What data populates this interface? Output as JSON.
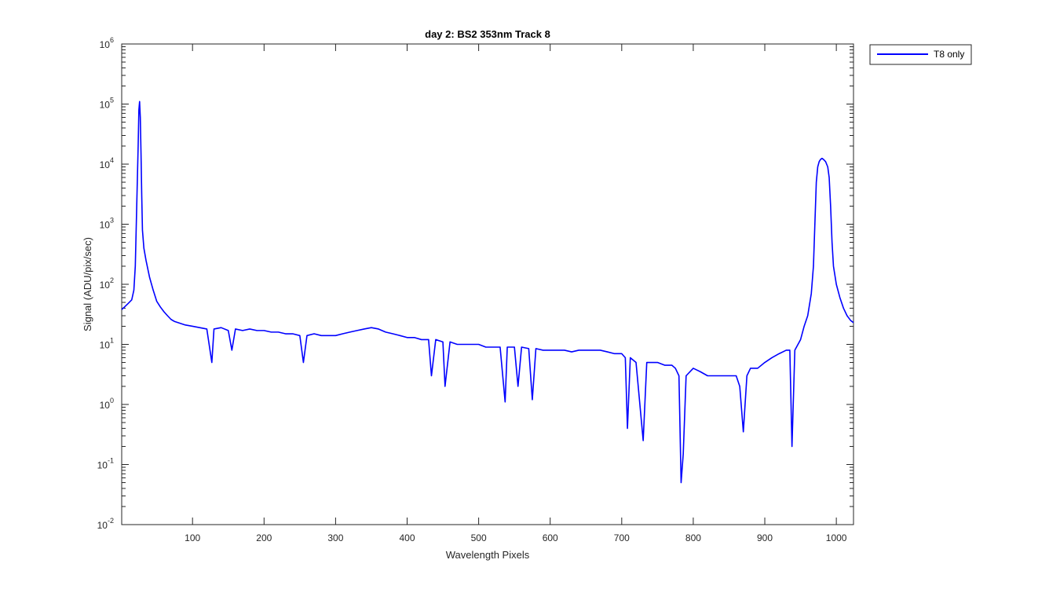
{
  "chart_data": {
    "type": "line",
    "title": "day 2: BS2  353nm  Track 8",
    "xlabel": "Wavelength Pixels",
    "ylabel": "Signal (ADU/pix/sec)",
    "xlim": [
      1,
      1024
    ],
    "ylim": [
      0.01,
      1000000
    ],
    "yscale": "log",
    "grid": false,
    "legend_position": "outside-top-right",
    "x_ticks": [
      100,
      200,
      300,
      400,
      500,
      600,
      700,
      800,
      900,
      1000
    ],
    "x_tick_labels": [
      "100",
      "200",
      "300",
      "400",
      "500",
      "600",
      "700",
      "800",
      "900",
      "1000"
    ],
    "y_ticks": [
      {
        "value": 0.01,
        "base": "10",
        "exp": "-2"
      },
      {
        "value": 0.1,
        "base": "10",
        "exp": "-1"
      },
      {
        "value": 1,
        "base": "10",
        "exp": "0"
      },
      {
        "value": 10,
        "base": "10",
        "exp": "1"
      },
      {
        "value": 100,
        "base": "10",
        "exp": "2"
      },
      {
        "value": 1000,
        "base": "10",
        "exp": "3"
      },
      {
        "value": 10000,
        "base": "10",
        "exp": "4"
      },
      {
        "value": 100000,
        "base": "10",
        "exp": "5"
      },
      {
        "value": 1000000,
        "base": "10",
        "exp": "6"
      }
    ],
    "series": [
      {
        "name": "T8 only",
        "color": "#0000ff",
        "points": [
          [
            1,
            38
          ],
          [
            5,
            42
          ],
          [
            10,
            48
          ],
          [
            15,
            55
          ],
          [
            18,
            80
          ],
          [
            20,
            200
          ],
          [
            22,
            2000
          ],
          [
            24,
            20000
          ],
          [
            25,
            80000
          ],
          [
            26,
            110000
          ],
          [
            27,
            60000
          ],
          [
            28,
            15000
          ],
          [
            29,
            3000
          ],
          [
            30,
            800
          ],
          [
            32,
            400
          ],
          [
            35,
            250
          ],
          [
            40,
            130
          ],
          [
            45,
            80
          ],
          [
            50,
            52
          ],
          [
            55,
            42
          ],
          [
            60,
            35
          ],
          [
            65,
            30
          ],
          [
            70,
            26
          ],
          [
            75,
            24
          ],
          [
            80,
            23
          ],
          [
            90,
            21
          ],
          [
            100,
            20
          ],
          [
            110,
            19
          ],
          [
            120,
            18
          ],
          [
            127,
            5
          ],
          [
            130,
            18
          ],
          [
            140,
            19
          ],
          [
            150,
            17
          ],
          [
            155,
            8
          ],
          [
            160,
            18
          ],
          [
            170,
            17
          ],
          [
            180,
            18
          ],
          [
            190,
            17
          ],
          [
            200,
            17
          ],
          [
            210,
            16
          ],
          [
            220,
            16
          ],
          [
            230,
            15
          ],
          [
            240,
            15
          ],
          [
            250,
            14
          ],
          [
            255,
            5
          ],
          [
            260,
            14
          ],
          [
            270,
            15
          ],
          [
            280,
            14
          ],
          [
            290,
            14
          ],
          [
            300,
            14
          ],
          [
            310,
            15
          ],
          [
            320,
            16
          ],
          [
            330,
            17
          ],
          [
            340,
            18
          ],
          [
            350,
            19
          ],
          [
            360,
            18
          ],
          [
            370,
            16
          ],
          [
            380,
            15
          ],
          [
            390,
            14
          ],
          [
            400,
            13
          ],
          [
            410,
            13
          ],
          [
            420,
            12
          ],
          [
            430,
            12
          ],
          [
            434,
            3
          ],
          [
            440,
            12
          ],
          [
            450,
            11
          ],
          [
            453,
            2
          ],
          [
            460,
            11
          ],
          [
            470,
            10
          ],
          [
            480,
            10
          ],
          [
            490,
            10
          ],
          [
            500,
            10
          ],
          [
            510,
            9
          ],
          [
            520,
            9
          ],
          [
            530,
            9
          ],
          [
            537,
            1.1
          ],
          [
            540,
            9
          ],
          [
            550,
            9
          ],
          [
            555,
            2
          ],
          [
            560,
            9
          ],
          [
            570,
            8.5
          ],
          [
            575,
            1.2
          ],
          [
            580,
            8.5
          ],
          [
            590,
            8
          ],
          [
            600,
            8
          ],
          [
            610,
            8
          ],
          [
            620,
            8
          ],
          [
            630,
            7.5
          ],
          [
            640,
            8
          ],
          [
            650,
            8
          ],
          [
            660,
            8
          ],
          [
            670,
            8
          ],
          [
            680,
            7.5
          ],
          [
            690,
            7
          ],
          [
            700,
            7
          ],
          [
            705,
            6
          ],
          [
            708,
            0.4
          ],
          [
            712,
            6
          ],
          [
            720,
            5
          ],
          [
            730,
            0.25
          ],
          [
            735,
            5
          ],
          [
            740,
            5
          ],
          [
            750,
            5
          ],
          [
            760,
            4.5
          ],
          [
            770,
            4.5
          ],
          [
            775,
            4
          ],
          [
            780,
            3
          ],
          [
            783,
            0.05
          ],
          [
            786,
            0.15
          ],
          [
            790,
            3
          ],
          [
            800,
            4
          ],
          [
            810,
            3.5
          ],
          [
            820,
            3
          ],
          [
            830,
            3
          ],
          [
            840,
            3
          ],
          [
            850,
            3
          ],
          [
            860,
            3
          ],
          [
            865,
            2
          ],
          [
            870,
            0.35
          ],
          [
            875,
            3
          ],
          [
            880,
            4
          ],
          [
            890,
            4
          ],
          [
            900,
            5
          ],
          [
            910,
            6
          ],
          [
            920,
            7
          ],
          [
            930,
            8
          ],
          [
            935,
            8
          ],
          [
            938,
            0.2
          ],
          [
            942,
            8
          ],
          [
            950,
            12
          ],
          [
            955,
            20
          ],
          [
            960,
            30
          ],
          [
            965,
            70
          ],
          [
            968,
            200
          ],
          [
            970,
            1000
          ],
          [
            972,
            5000
          ],
          [
            974,
            9000
          ],
          [
            976,
            11000
          ],
          [
            978,
            12000
          ],
          [
            980,
            12500
          ],
          [
            982,
            12000
          ],
          [
            985,
            11000
          ],
          [
            988,
            9000
          ],
          [
            990,
            6000
          ],
          [
            992,
            2000
          ],
          [
            994,
            500
          ],
          [
            996,
            200
          ],
          [
            1000,
            100
          ],
          [
            1005,
            60
          ],
          [
            1010,
            40
          ],
          [
            1015,
            30
          ],
          [
            1020,
            25
          ],
          [
            1024,
            23
          ]
        ]
      }
    ],
    "legend": {
      "entries": [
        "T8 only"
      ]
    }
  }
}
